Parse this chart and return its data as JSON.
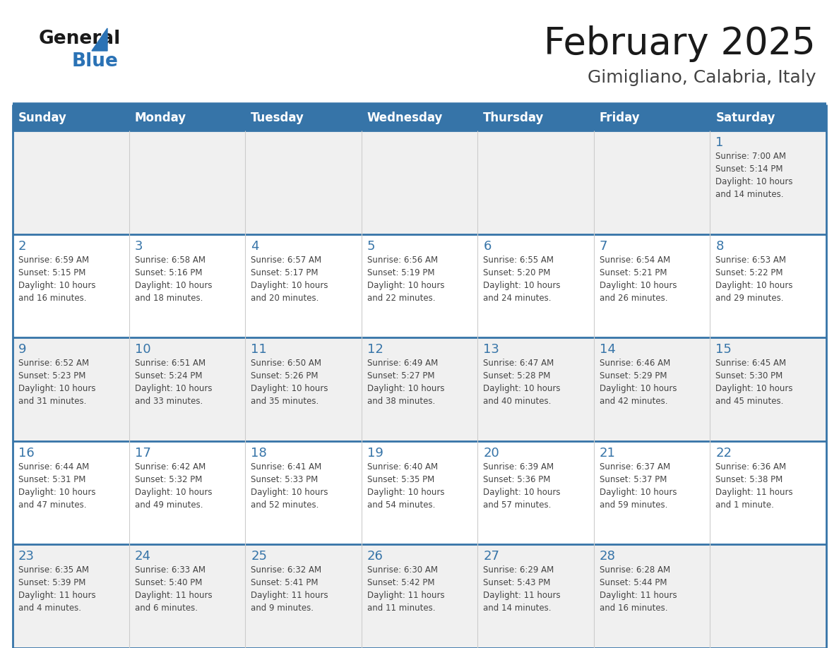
{
  "title": "February 2025",
  "subtitle": "Gimigliano, Calabria, Italy",
  "header_bg": "#3674a8",
  "header_text_color": "#FFFFFF",
  "cell_bg_odd": "#F0F0F0",
  "cell_bg_even": "#FFFFFF",
  "border_color_dark": "#3674a8",
  "border_color_light": "#CCCCCC",
  "day_names": [
    "Sunday",
    "Monday",
    "Tuesday",
    "Wednesday",
    "Thursday",
    "Friday",
    "Saturday"
  ],
  "title_color": "#1a1a1a",
  "subtitle_color": "#444444",
  "day_num_color": "#3674a8",
  "detail_color": "#444444",
  "logo_general_color": "#1a1a1a",
  "logo_blue_color": "#2a72b5",
  "weeks": [
    [
      "",
      "",
      "",
      "",
      "",
      "",
      "1\nSunrise: 7:00 AM\nSunset: 5:14 PM\nDaylight: 10 hours\nand 14 minutes."
    ],
    [
      "2\nSunrise: 6:59 AM\nSunset: 5:15 PM\nDaylight: 10 hours\nand 16 minutes.",
      "3\nSunrise: 6:58 AM\nSunset: 5:16 PM\nDaylight: 10 hours\nand 18 minutes.",
      "4\nSunrise: 6:57 AM\nSunset: 5:17 PM\nDaylight: 10 hours\nand 20 minutes.",
      "5\nSunrise: 6:56 AM\nSunset: 5:19 PM\nDaylight: 10 hours\nand 22 minutes.",
      "6\nSunrise: 6:55 AM\nSunset: 5:20 PM\nDaylight: 10 hours\nand 24 minutes.",
      "7\nSunrise: 6:54 AM\nSunset: 5:21 PM\nDaylight: 10 hours\nand 26 minutes.",
      "8\nSunrise: 6:53 AM\nSunset: 5:22 PM\nDaylight: 10 hours\nand 29 minutes."
    ],
    [
      "9\nSunrise: 6:52 AM\nSunset: 5:23 PM\nDaylight: 10 hours\nand 31 minutes.",
      "10\nSunrise: 6:51 AM\nSunset: 5:24 PM\nDaylight: 10 hours\nand 33 minutes.",
      "11\nSunrise: 6:50 AM\nSunset: 5:26 PM\nDaylight: 10 hours\nand 35 minutes.",
      "12\nSunrise: 6:49 AM\nSunset: 5:27 PM\nDaylight: 10 hours\nand 38 minutes.",
      "13\nSunrise: 6:47 AM\nSunset: 5:28 PM\nDaylight: 10 hours\nand 40 minutes.",
      "14\nSunrise: 6:46 AM\nSunset: 5:29 PM\nDaylight: 10 hours\nand 42 minutes.",
      "15\nSunrise: 6:45 AM\nSunset: 5:30 PM\nDaylight: 10 hours\nand 45 minutes."
    ],
    [
      "16\nSunrise: 6:44 AM\nSunset: 5:31 PM\nDaylight: 10 hours\nand 47 minutes.",
      "17\nSunrise: 6:42 AM\nSunset: 5:32 PM\nDaylight: 10 hours\nand 49 minutes.",
      "18\nSunrise: 6:41 AM\nSunset: 5:33 PM\nDaylight: 10 hours\nand 52 minutes.",
      "19\nSunrise: 6:40 AM\nSunset: 5:35 PM\nDaylight: 10 hours\nand 54 minutes.",
      "20\nSunrise: 6:39 AM\nSunset: 5:36 PM\nDaylight: 10 hours\nand 57 minutes.",
      "21\nSunrise: 6:37 AM\nSunset: 5:37 PM\nDaylight: 10 hours\nand 59 minutes.",
      "22\nSunrise: 6:36 AM\nSunset: 5:38 PM\nDaylight: 11 hours\nand 1 minute."
    ],
    [
      "23\nSunrise: 6:35 AM\nSunset: 5:39 PM\nDaylight: 11 hours\nand 4 minutes.",
      "24\nSunrise: 6:33 AM\nSunset: 5:40 PM\nDaylight: 11 hours\nand 6 minutes.",
      "25\nSunrise: 6:32 AM\nSunset: 5:41 PM\nDaylight: 11 hours\nand 9 minutes.",
      "26\nSunrise: 6:30 AM\nSunset: 5:42 PM\nDaylight: 11 hours\nand 11 minutes.",
      "27\nSunrise: 6:29 AM\nSunset: 5:43 PM\nDaylight: 11 hours\nand 14 minutes.",
      "28\nSunrise: 6:28 AM\nSunset: 5:44 PM\nDaylight: 11 hours\nand 16 minutes.",
      ""
    ]
  ]
}
